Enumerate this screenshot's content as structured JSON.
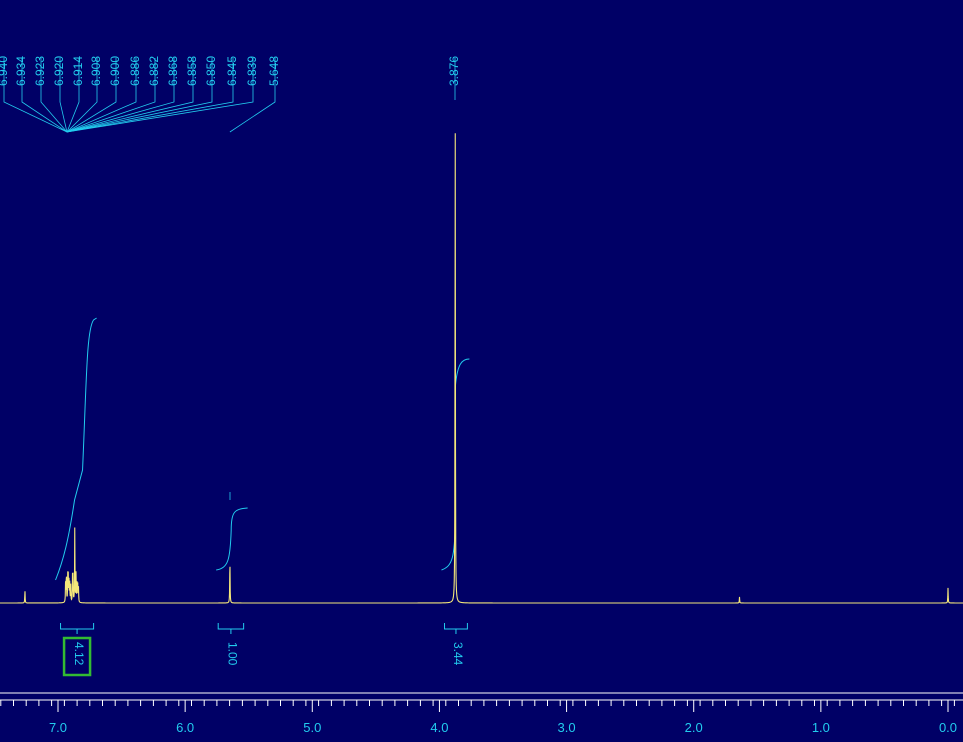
{
  "chart_data": {
    "type": "line",
    "title": "",
    "xlabel": "",
    "ylabel": "",
    "xlim": [
      7.45,
      -0.05
    ],
    "x_reversed": true,
    "grid": false,
    "colors": {
      "background": "#000066",
      "spectrum": "#f5e87a",
      "annotation": "#22ccee",
      "highlight": "#33bb33",
      "axis": "#ffffff"
    },
    "ticks": [
      {
        "value": 7.0,
        "label": "7.0"
      },
      {
        "value": 6.0,
        "label": "6.0"
      },
      {
        "value": 5.0,
        "label": "5.0"
      },
      {
        "value": 4.0,
        "label": "4.0"
      },
      {
        "value": 3.0,
        "label": "3.0"
      },
      {
        "value": 2.0,
        "label": "2.0"
      },
      {
        "value": 1.0,
        "label": "1.0"
      },
      {
        "value": 0.0,
        "label": "0.0"
      }
    ],
    "peak_labels": [
      {
        "label": "6.940",
        "ppm": 6.94
      },
      {
        "label": "6.934",
        "ppm": 6.934
      },
      {
        "label": "6.923",
        "ppm": 6.923
      },
      {
        "label": "6.920",
        "ppm": 6.92
      },
      {
        "label": "6.914",
        "ppm": 6.914
      },
      {
        "label": "6.908",
        "ppm": 6.908
      },
      {
        "label": "6.900",
        "ppm": 6.9
      },
      {
        "label": "6.886",
        "ppm": 6.886
      },
      {
        "label": "6.882",
        "ppm": 6.882
      },
      {
        "label": "6.868",
        "ppm": 6.868
      },
      {
        "label": "6.858",
        "ppm": 6.858
      },
      {
        "label": "6.850",
        "ppm": 6.85
      },
      {
        "label": "6.845",
        "ppm": 6.845
      },
      {
        "label": "6.839",
        "ppm": 6.839
      },
      {
        "label": "5.648",
        "ppm": 5.648
      },
      {
        "label": "3.876",
        "ppm": 3.876
      }
    ],
    "peaks": [
      {
        "ppm": 7.26,
        "height": 0.025
      },
      {
        "ppm": 6.94,
        "height": 0.05
      },
      {
        "ppm": 6.934,
        "height": 0.06
      },
      {
        "ppm": 6.923,
        "height": 0.05
      },
      {
        "ppm": 6.92,
        "height": 0.055
      },
      {
        "ppm": 6.914,
        "height": 0.045
      },
      {
        "ppm": 6.908,
        "height": 0.04
      },
      {
        "ppm": 6.9,
        "height": 0.035
      },
      {
        "ppm": 6.886,
        "height": 0.05
      },
      {
        "ppm": 6.882,
        "height": 0.05
      },
      {
        "ppm": 6.868,
        "height": 0.15
      },
      {
        "ppm": 6.858,
        "height": 0.06
      },
      {
        "ppm": 6.85,
        "height": 0.04
      },
      {
        "ppm": 6.845,
        "height": 0.035
      },
      {
        "ppm": 6.839,
        "height": 0.03
      },
      {
        "ppm": 5.648,
        "height": 0.09
      },
      {
        "ppm": 3.876,
        "height": 1.0
      },
      {
        "ppm": 1.64,
        "height": 0.012
      },
      {
        "ppm": 0.0,
        "height": 0.03
      }
    ],
    "integrals": [
      {
        "label": "4.12",
        "value": 4.12,
        "from": 6.98,
        "to": 6.72,
        "highlighted": true
      },
      {
        "label": "1.00",
        "value": 1.0,
        "from": 5.74,
        "to": 5.54,
        "highlighted": false
      },
      {
        "label": "3.44",
        "value": 3.44,
        "from": 3.96,
        "to": 3.78,
        "highlighted": false
      }
    ]
  }
}
